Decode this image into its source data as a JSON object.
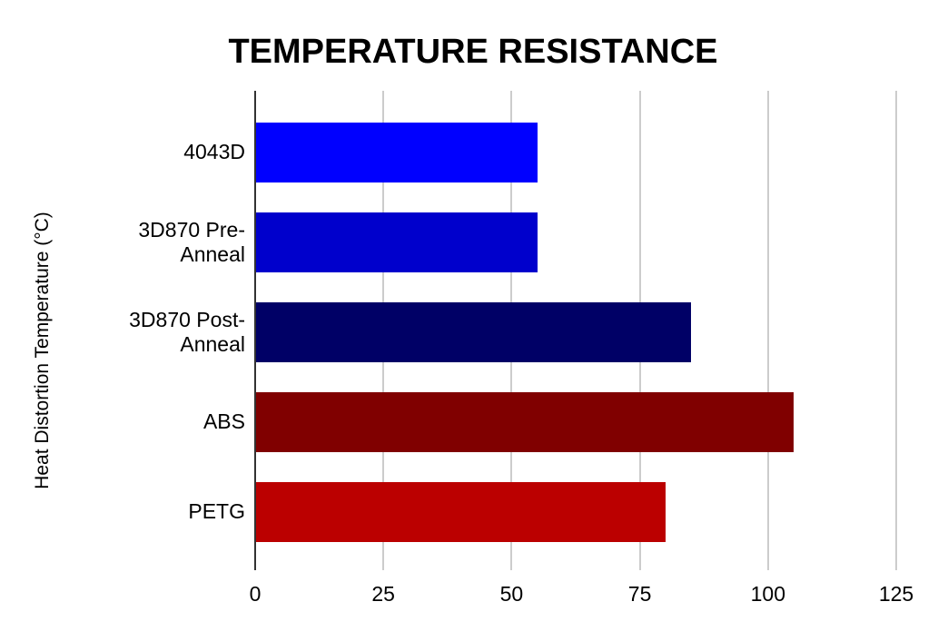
{
  "chart_data": {
    "type": "bar",
    "orientation": "horizontal",
    "title": "TEMPERATURE RESISTANCE",
    "ylabel": "Heat Distortion Temperature (°C)",
    "xlabel": "",
    "categories": [
      "4043D",
      "3D870 Pre-Anneal",
      "3D870 Post-Anneal",
      "ABS",
      "PETG"
    ],
    "values": [
      55,
      55,
      85,
      105,
      80
    ],
    "bar_colors": [
      "#0000ff",
      "#0000cc",
      "#000066",
      "#800000",
      "#bb0000"
    ],
    "xlim": [
      0,
      125
    ],
    "xticks": [
      0,
      25,
      50,
      75,
      100,
      125
    ],
    "grid": "vertical",
    "legend": "none",
    "background_color": "#ffffff",
    "gridline_color": "#cccccc",
    "axis_line_color": "#333333",
    "text_color": "#000000"
  }
}
